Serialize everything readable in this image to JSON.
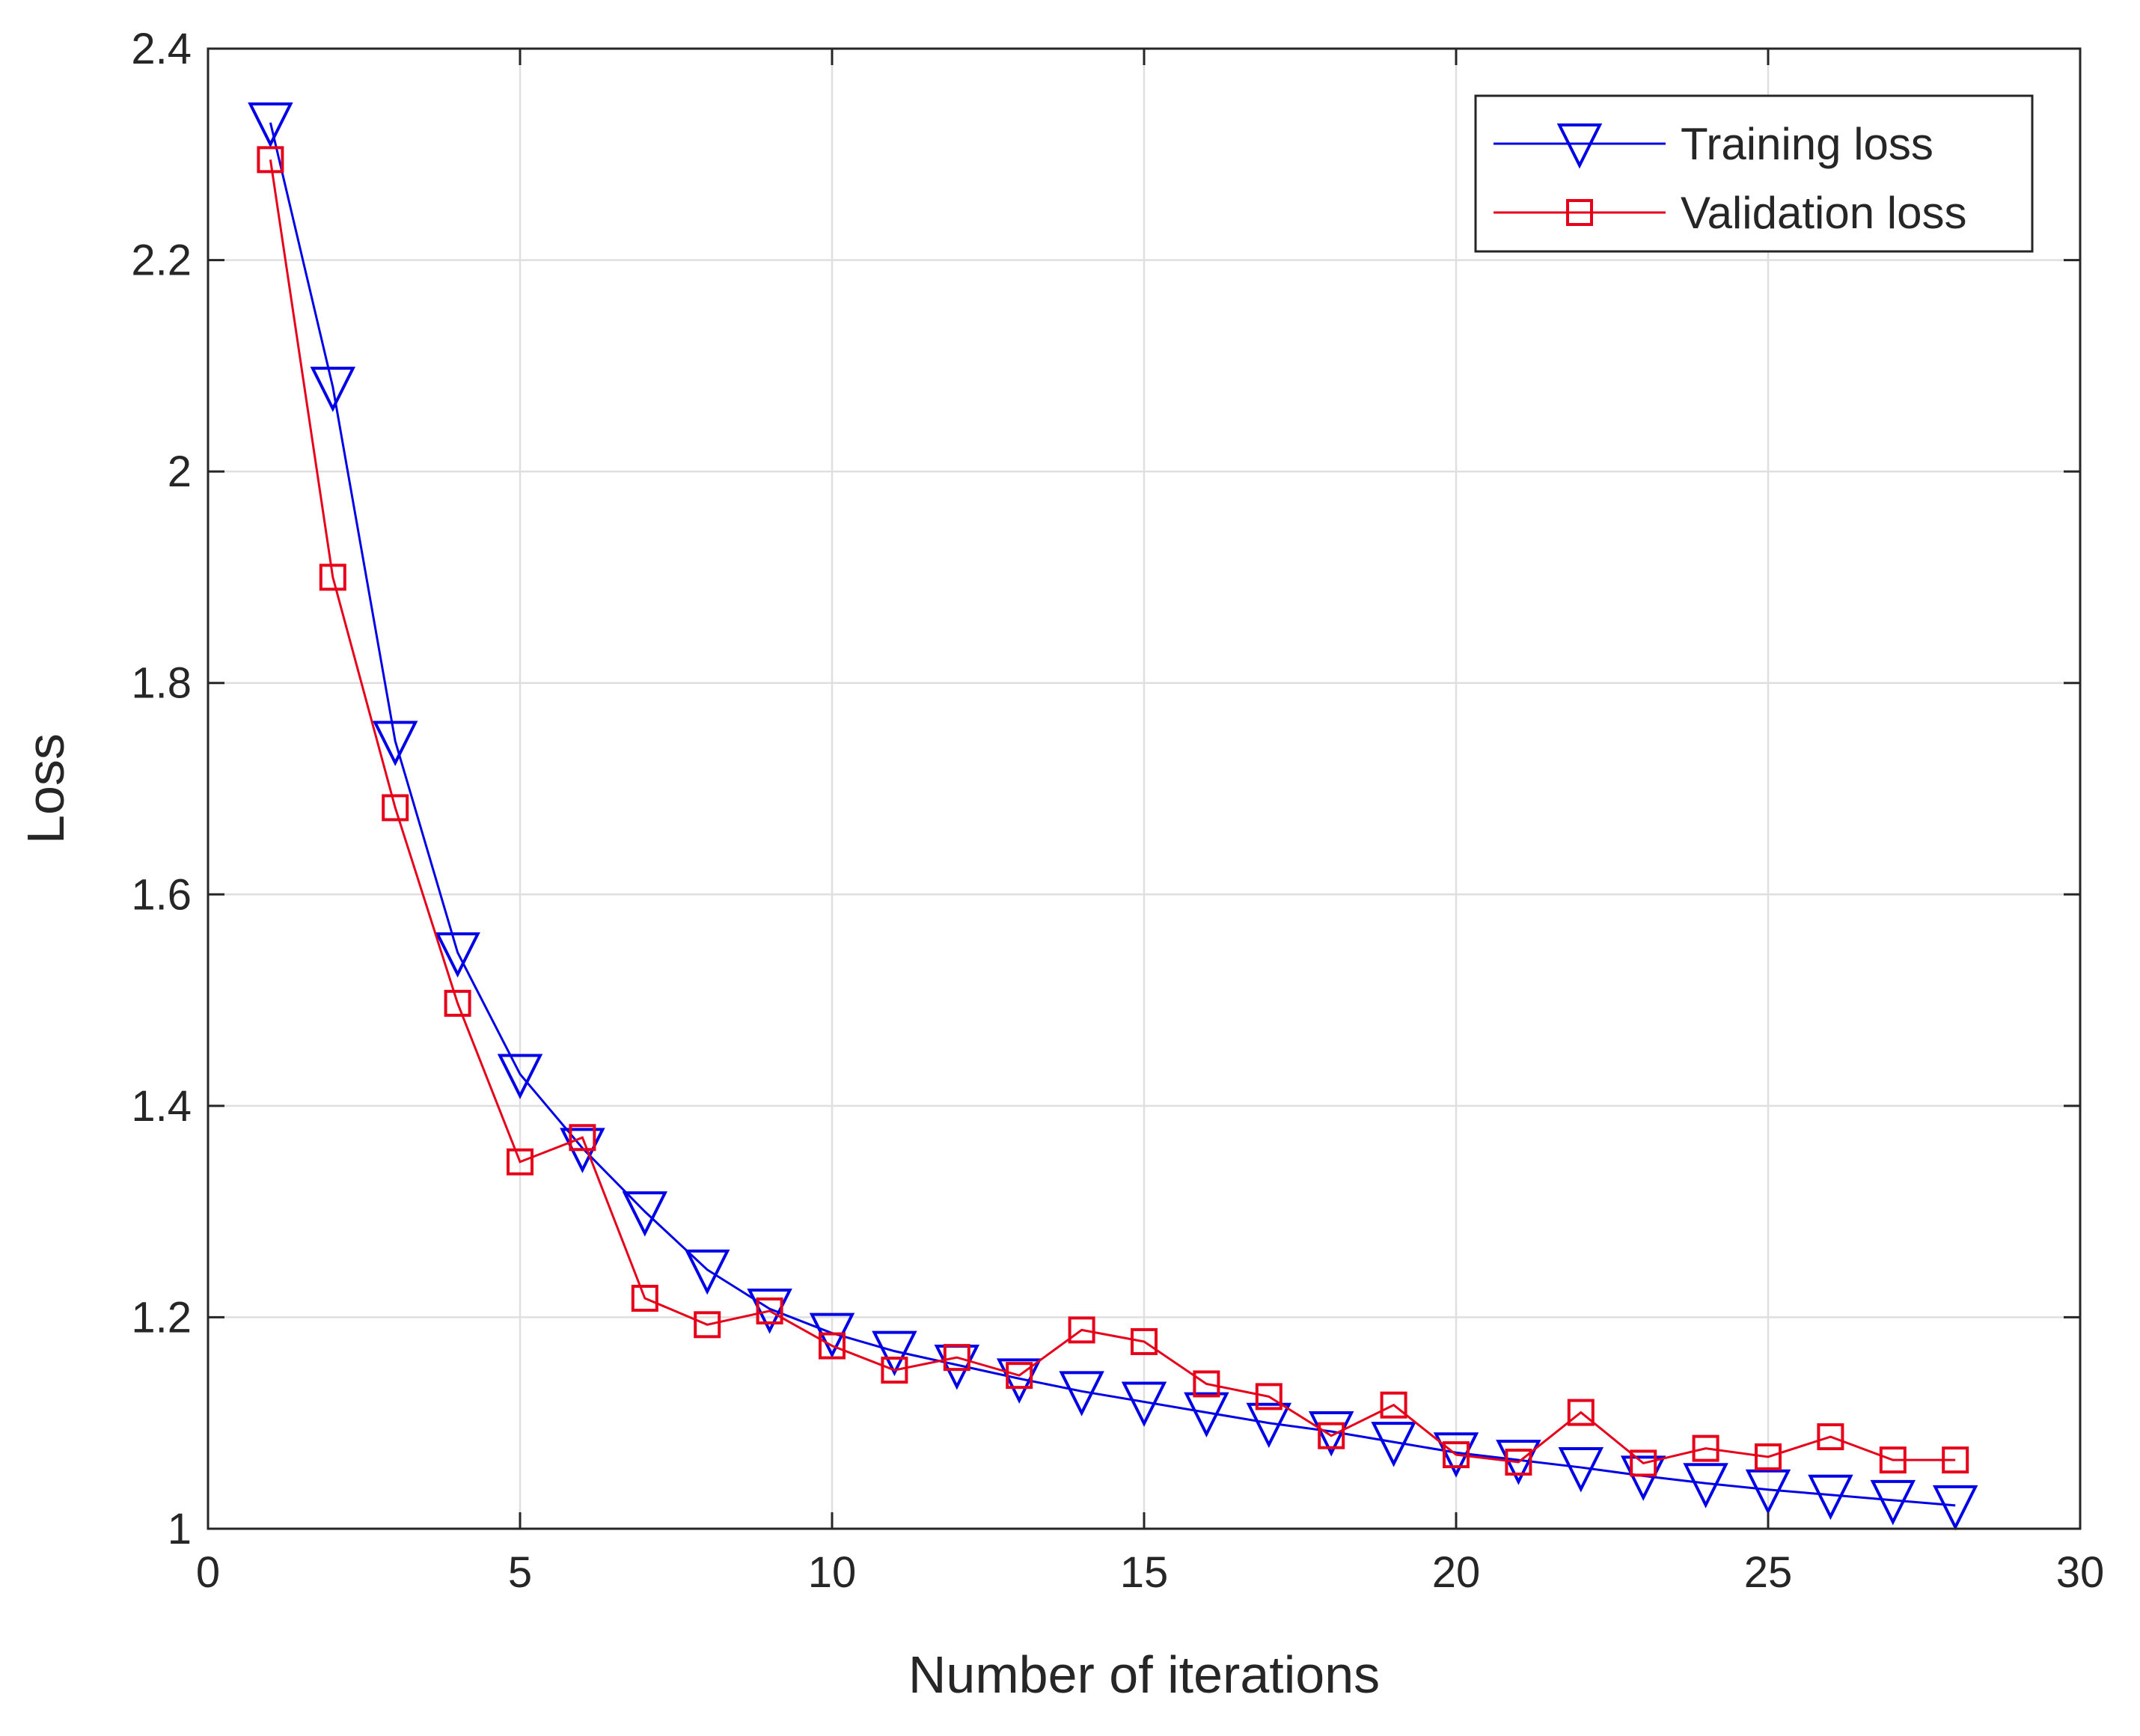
{
  "chart_data": {
    "type": "line",
    "title": "",
    "xlabel": "Number of iterations",
    "ylabel": "Loss",
    "xlim": [
      0,
      30
    ],
    "ylim": [
      1,
      2.4
    ],
    "xticks": [
      0,
      5,
      10,
      15,
      20,
      25,
      30
    ],
    "yticks": [
      1,
      1.2,
      1.4,
      1.6,
      1.8,
      2,
      2.2,
      2.4
    ],
    "xtick_labels": [
      "0",
      "5",
      "10",
      "15",
      "20",
      "25",
      "30"
    ],
    "ytick_labels": [
      "1",
      "1.2",
      "1.4",
      "1.6",
      "1.8",
      "2",
      "2.2",
      "2.4"
    ],
    "grid": true,
    "legend_position": "top-right",
    "x": [
      1,
      2,
      3,
      4,
      5,
      6,
      7,
      8,
      9,
      10,
      11,
      12,
      13,
      14,
      15,
      16,
      17,
      18,
      19,
      20,
      21,
      22,
      23,
      24,
      25,
      26,
      27,
      28
    ],
    "series": [
      {
        "name": "Training loss",
        "color": "#0000e6",
        "marker": "triangle-down",
        "values": [
          2.33,
          2.08,
          1.745,
          1.545,
          1.43,
          1.36,
          1.3,
          1.245,
          1.208,
          1.185,
          1.168,
          1.155,
          1.142,
          1.13,
          1.12,
          1.11,
          1.1,
          1.092,
          1.082,
          1.072,
          1.065,
          1.058,
          1.05,
          1.043,
          1.037,
          1.032,
          1.027,
          1.022
        ]
      },
      {
        "name": "Validation loss",
        "color": "#e6001a",
        "marker": "square",
        "values": [
          2.295,
          1.9,
          1.682,
          1.497,
          1.347,
          1.37,
          1.218,
          1.193,
          1.206,
          1.173,
          1.15,
          1.162,
          1.145,
          1.188,
          1.177,
          1.137,
          1.125,
          1.088,
          1.117,
          1.07,
          1.063,
          1.11,
          1.062,
          1.076,
          1.068,
          1.087,
          1.065,
          1.065
        ]
      }
    ]
  }
}
